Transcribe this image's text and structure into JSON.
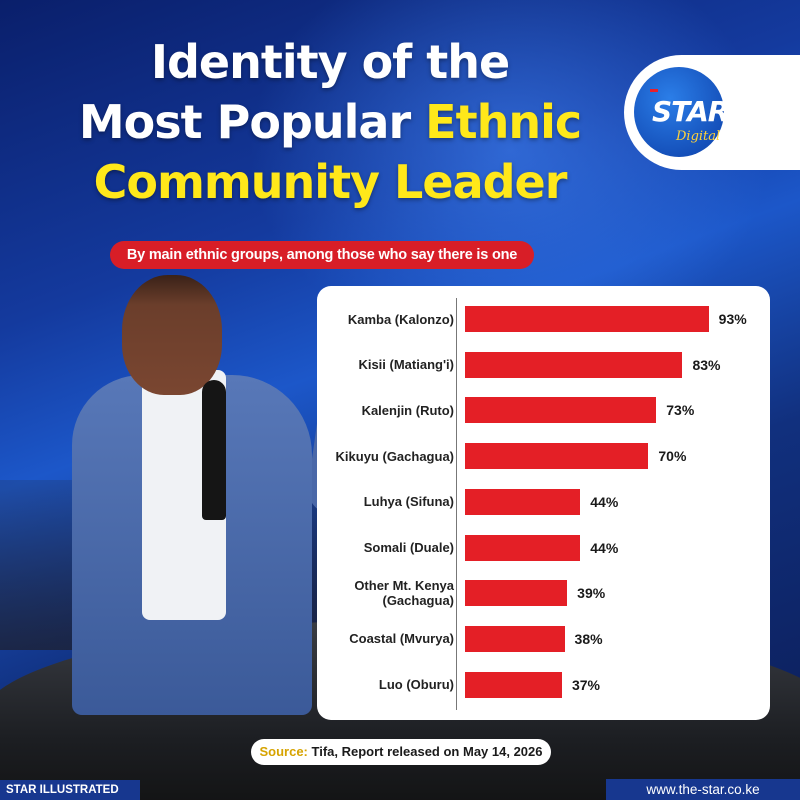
{
  "title": {
    "line1": "Identity of the",
    "line2_white": "Most Popular",
    "line2_yellow": "Ethnic",
    "line3_yellow": "Community Leader"
  },
  "logo": {
    "main": "STAR",
    "sub": "Digital"
  },
  "subtitle": "By main ethnic groups, among those who say there is one",
  "source": {
    "key": "Source:",
    "text": "Tifa, Report released on May 14, 2026"
  },
  "footer": {
    "left": "STAR ILLUSTRATED",
    "right": "www.the-star.co.ke"
  },
  "colors": {
    "bar": "#e41f26",
    "title_highlight": "#ffe81a",
    "subtitle_bg": "#d81e27",
    "brand_blue": "#17378f"
  },
  "chart_data": {
    "type": "bar",
    "orientation": "horizontal",
    "title": "Identity of the Most Popular Ethnic Community Leader",
    "subtitle": "By main ethnic groups, among those who say there is one",
    "categories": [
      "Kamba (Kalonzo)",
      "Kisii (Matiang'i)",
      "Kalenjin (Ruto)",
      "Kikuyu (Gachagua)",
      "Luhya (Sifuna)",
      "Somali (Duale)",
      "Other Mt. Kenya (Gachagua)",
      "Coastal (Mvurya)",
      "Luo (Oburu)"
    ],
    "values": [
      93,
      83,
      73,
      70,
      44,
      44,
      39,
      38,
      37
    ],
    "value_labels": [
      "93%",
      "83%",
      "73%",
      "70%",
      "44%",
      "44%",
      "39%",
      "38%",
      "37%"
    ],
    "unit": "%",
    "xlim": [
      0,
      100
    ],
    "grid": false,
    "legend": "none"
  }
}
